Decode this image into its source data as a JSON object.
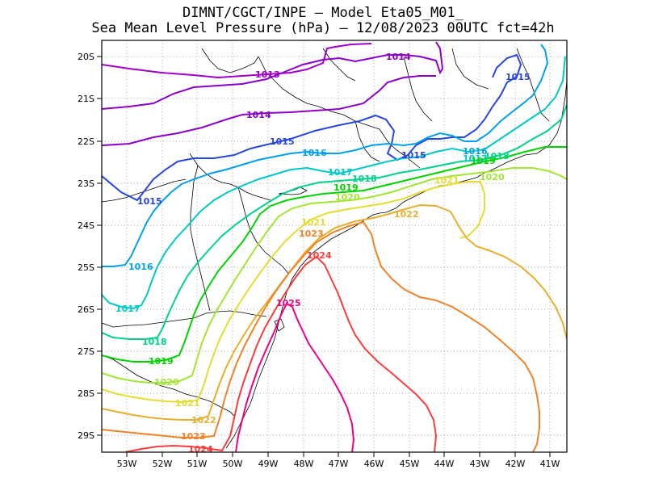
{
  "title_line1": "DIMNT/CGCT/INPE —  Model Eta05_M01_",
  "title_line2": "Sea Mean Level Pressure (hPa) — 12/08/2023 00UTC fct=42h",
  "lat_ticks": [
    "20S",
    "21S",
    "22S",
    "23S",
    "24S",
    "25S",
    "26S",
    "27S",
    "28S",
    "29S"
  ],
  "lon_ticks": [
    "53W",
    "52W",
    "51W",
    "50W",
    "49W",
    "48W",
    "47W",
    "46W",
    "45W",
    "44W",
    "43W",
    "42W",
    "41W"
  ],
  "contours": [
    {
      "level": 1013,
      "label": "1013",
      "color": "#a000c8"
    },
    {
      "level": 1014,
      "label": "1014",
      "color": "#8c00c8"
    },
    {
      "level": 1015,
      "label": "1015",
      "color": "#2846dc"
    },
    {
      "level": 1016,
      "label": "1016",
      "color": "#00a0f0"
    },
    {
      "level": 1017,
      "label": "1017",
      "color": "#00c8c8"
    },
    {
      "level": 1018,
      "label": "1018",
      "color": "#00d28c"
    },
    {
      "level": 1019,
      "label": "1019",
      "color": "#00d200"
    },
    {
      "level": 1020,
      "label": "1020",
      "color": "#a0e632"
    },
    {
      "level": 1021,
      "label": "1021",
      "color": "#e6dc32"
    },
    {
      "level": 1022,
      "label": "1022",
      "color": "#e6af2d"
    },
    {
      "level": 1023,
      "label": "1023",
      "color": "#f08228"
    },
    {
      "level": 1024,
      "label": "1024",
      "color": "#fa3c3c"
    },
    {
      "level": 1025,
      "label": "1025",
      "color": "#f00082"
    }
  ]
}
